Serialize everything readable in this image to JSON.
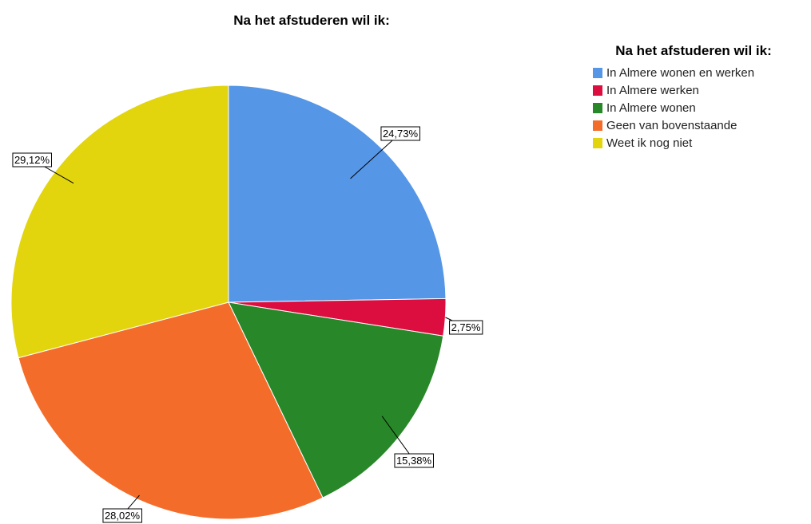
{
  "chart_data": {
    "type": "pie",
    "title": "Na het afstuderen wil ik:",
    "legend_title": "Na het afstuderen wil ik:",
    "legend_position": "right",
    "slices": [
      {
        "label": "In Almere wonen en werken",
        "value": 24.73,
        "value_label": "24,73%",
        "color": "#5596e6"
      },
      {
        "label": "In Almere werken",
        "value": 2.75,
        "value_label": "2,75%",
        "color": "#dc0d3f"
      },
      {
        "label": "In Almere wonen",
        "value": 15.38,
        "value_label": "15,38%",
        "color": "#288728"
      },
      {
        "label": "Geen van bovenstaande",
        "value": 28.02,
        "value_label": "28,02%",
        "color": "#f46c2a"
      },
      {
        "label": "Weet ik nog niet",
        "value": 29.12,
        "value_label": "29,12%",
        "color": "#e2d50d"
      }
    ]
  }
}
